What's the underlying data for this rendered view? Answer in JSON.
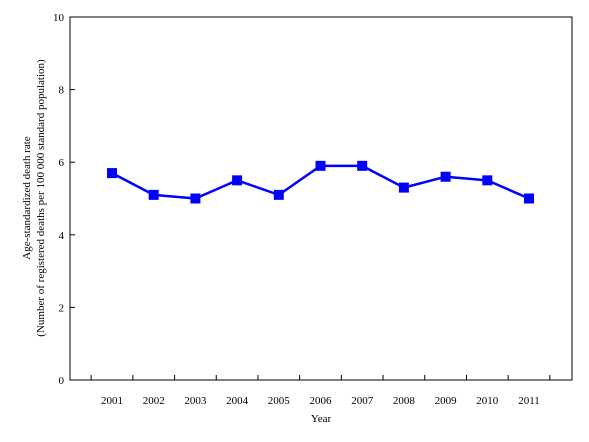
{
  "chart_data": {
    "type": "line",
    "title": "",
    "xlabel": "Year",
    "ylabel_line1": "Age-standardized death rate",
    "ylabel_line2": "(Number of registered deaths per 100 000 standard population)",
    "categories": [
      "2001",
      "2002",
      "2003",
      "2004",
      "2005",
      "2006",
      "2007",
      "2008",
      "2009",
      "2010",
      "2011"
    ],
    "series": [
      {
        "values": [
          5.7,
          5.1,
          5.0,
          5.5,
          5.1,
          5.9,
          5.9,
          5.3,
          5.6,
          5.5,
          5.0
        ],
        "color": "#0000ff",
        "marker": "square"
      }
    ],
    "ylim": [
      0,
      10
    ],
    "yticks": [
      "0",
      "2",
      "4",
      "6",
      "8",
      "10"
    ],
    "grid": false,
    "legend": "none"
  }
}
